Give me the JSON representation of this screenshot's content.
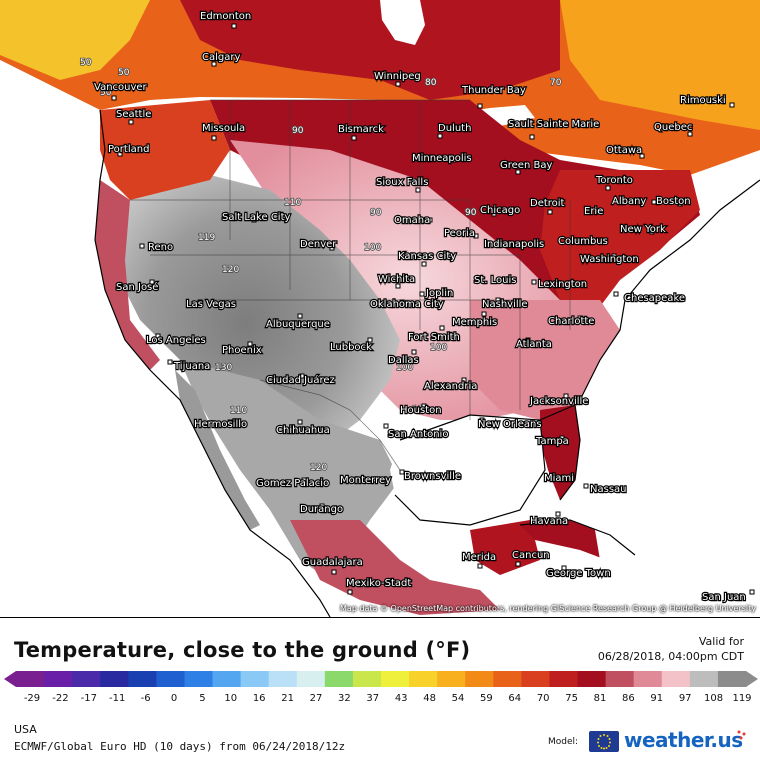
{
  "title": "Temperature, close to the ground (°F)",
  "valid": {
    "label": "Valid for",
    "datetime": "06/28/2018, 04:00pm CDT"
  },
  "region": "USA",
  "model_run": "ECMWF/Global Euro HD (10 days) from 06/24/2018/12z",
  "model_label": "Model:",
  "brand": "weather.us",
  "attribution": "Map data © OpenStreetMap contributors, rendering GIScience Research Group @ Heidelberg University",
  "colorbar_ticks": [
    "-29",
    "-22",
    "-17",
    "-11",
    "-6",
    "0",
    "5",
    "10",
    "16",
    "21",
    "27",
    "32",
    "37",
    "43",
    "48",
    "54",
    "59",
    "64",
    "70",
    "75",
    "81",
    "86",
    "91",
    "97",
    "108",
    "119"
  ],
  "colorbar_colors": [
    "#7a1f8f",
    "#6a1fa8",
    "#4a2aa8",
    "#2a2aa0",
    "#1a3fb0",
    "#1f5fd0",
    "#2f80e6",
    "#55a6f0",
    "#8ac8f5",
    "#b9e0f7",
    "#d8efef",
    "#8bd96a",
    "#c9e64a",
    "#eef03b",
    "#f8d22a",
    "#f8b01e",
    "#f28a18",
    "#e8621a",
    "#d8401f",
    "#c01f1f",
    "#a30f1f",
    "#c05060",
    "#e08a98",
    "#f2c2c8",
    "#bdbdbd",
    "#8c8c8c"
  ],
  "cities": [
    {
      "name": "Edmonton"
    },
    {
      "name": "Calgary"
    },
    {
      "name": "Vancouver"
    },
    {
      "name": "Seattle"
    },
    {
      "name": "Portland"
    },
    {
      "name": "Missoula"
    },
    {
      "name": "Winnipeg"
    },
    {
      "name": "Thunder Bay"
    },
    {
      "name": "Bismarck"
    },
    {
      "name": "Duluth"
    },
    {
      "name": "Sault Sainte Marie"
    },
    {
      "name": "Rimouski"
    },
    {
      "name": "Quebec"
    },
    {
      "name": "Ottawa"
    },
    {
      "name": "Minneapolis"
    },
    {
      "name": "Green Bay"
    },
    {
      "name": "Toronto"
    },
    {
      "name": "Sioux Falls"
    },
    {
      "name": "Detroit"
    },
    {
      "name": "Erie"
    },
    {
      "name": "Albany"
    },
    {
      "name": "Boston"
    },
    {
      "name": "Salt Lake City"
    },
    {
      "name": "Omaha"
    },
    {
      "name": "Chicago"
    },
    {
      "name": "New York"
    },
    {
      "name": "Reno"
    },
    {
      "name": "Denver"
    },
    {
      "name": "Peoria"
    },
    {
      "name": "Indianapolis"
    },
    {
      "name": "Columbus"
    },
    {
      "name": "Washington"
    },
    {
      "name": "Kansas City"
    },
    {
      "name": "San José"
    },
    {
      "name": "Wichita"
    },
    {
      "name": "Joplin"
    },
    {
      "name": "St. Louis"
    },
    {
      "name": "Lexington"
    },
    {
      "name": "Chesapeake"
    },
    {
      "name": "Las Vegas"
    },
    {
      "name": "Oklahoma City"
    },
    {
      "name": "Nashville"
    },
    {
      "name": "Memphis"
    },
    {
      "name": "Charlotte"
    },
    {
      "name": "Albuquerque"
    },
    {
      "name": "Fort Smith"
    },
    {
      "name": "Los Angeles"
    },
    {
      "name": "Phoenix"
    },
    {
      "name": "Lubbock"
    },
    {
      "name": "Atlanta"
    },
    {
      "name": "Tijuana"
    },
    {
      "name": "Dallas"
    },
    {
      "name": "Ciudad Juárez"
    },
    {
      "name": "Alexandria"
    },
    {
      "name": "Jacksonville"
    },
    {
      "name": "Hermosillo"
    },
    {
      "name": "Houston"
    },
    {
      "name": "New Orleans"
    },
    {
      "name": "Chihuahua"
    },
    {
      "name": "San Antonio"
    },
    {
      "name": "Tampa"
    },
    {
      "name": "Brownsville"
    },
    {
      "name": "Miami"
    },
    {
      "name": "Nassau"
    },
    {
      "name": "Gomez Palacio"
    },
    {
      "name": "Monterrey"
    },
    {
      "name": "Durango"
    },
    {
      "name": "Havana"
    },
    {
      "name": "Merida"
    },
    {
      "name": "Cancun"
    },
    {
      "name": "Guadalajara"
    },
    {
      "name": "George Town"
    },
    {
      "name": "Mexiko-Stadt"
    },
    {
      "name": "San Juan"
    }
  ],
  "contour_labels": [
    "50",
    "50",
    "50",
    "90",
    "100",
    "110",
    "119",
    "120",
    "130",
    "90",
    "100",
    "110",
    "70",
    "90",
    "80",
    "100",
    "110",
    "120"
  ]
}
